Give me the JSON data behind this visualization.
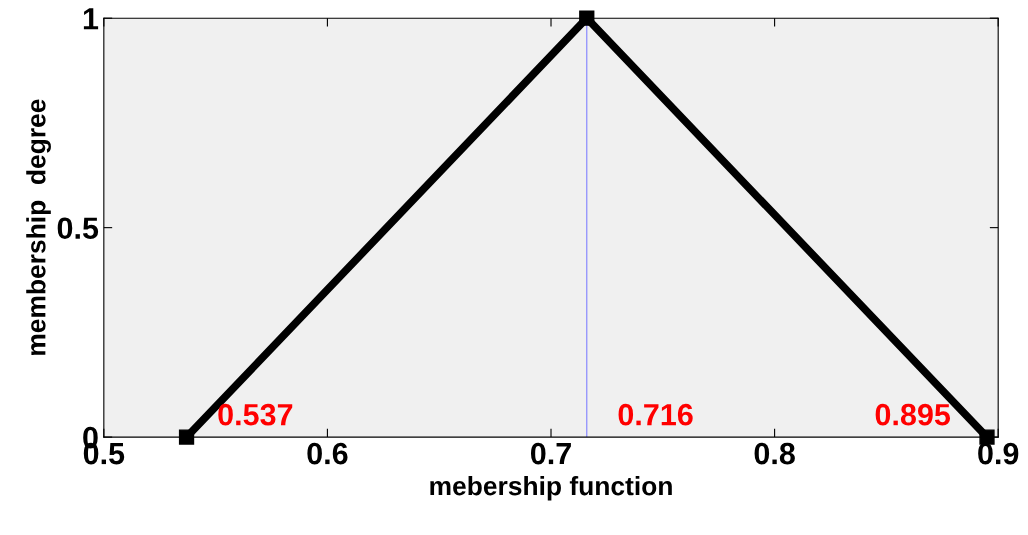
{
  "chart_data": {
    "type": "line",
    "xlabel": "mebership function",
    "ylabel": "membership  degree",
    "x": [
      0.537,
      0.716,
      0.895
    ],
    "series": [
      {
        "color": "#000000",
        "values": [
          0,
          1,
          0
        ]
      }
    ],
    "marker": "square",
    "line_style": "solid",
    "xlim": [
      0.5,
      0.9
    ],
    "ylim": [
      0,
      1
    ],
    "xticks": [
      0.5,
      0.6,
      0.7,
      0.8,
      0.9
    ],
    "yticks": [
      0,
      0.5,
      1
    ],
    "grid": false,
    "legend": false,
    "ref_lines": [
      {
        "axis": "x",
        "value": 0.716,
        "color": "#7f7fff",
        "line_style": "solid"
      }
    ],
    "annotations": [
      {
        "text": "0.537",
        "x": 0.537,
        "y": 0
      },
      {
        "text": "0.716",
        "x": 0.716,
        "y": 0
      },
      {
        "text": "0.895",
        "x": 0.895,
        "y": 0
      }
    ]
  }
}
